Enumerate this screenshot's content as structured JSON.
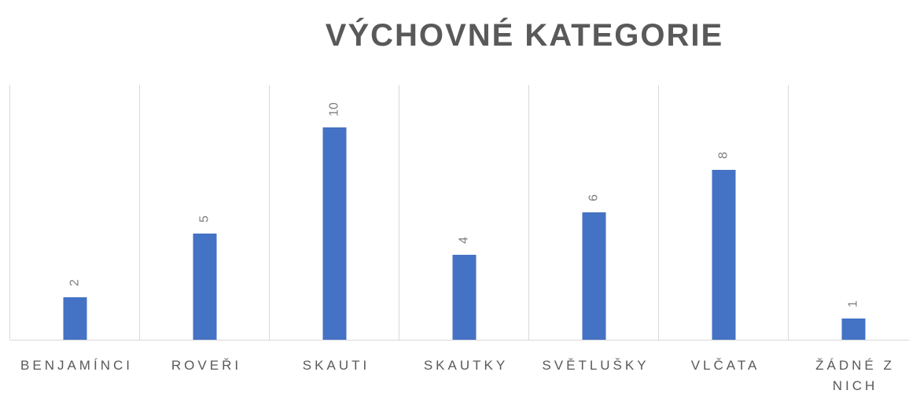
{
  "chart_data": {
    "type": "bar",
    "title": "VÝCHOVNÉ KATEGORIE",
    "categories": [
      "BENJAMÍNCI",
      "ROVEŘI",
      "SKAUTI",
      "SKAUTKY",
      "SVĚTLUŠKY",
      "VLČATA",
      "ŽÁDNÉ Z NICH"
    ],
    "values": [
      2,
      5,
      10,
      4,
      6,
      8,
      1
    ],
    "color": "#4472c4",
    "ylim": [
      0,
      12
    ],
    "grid": true
  }
}
